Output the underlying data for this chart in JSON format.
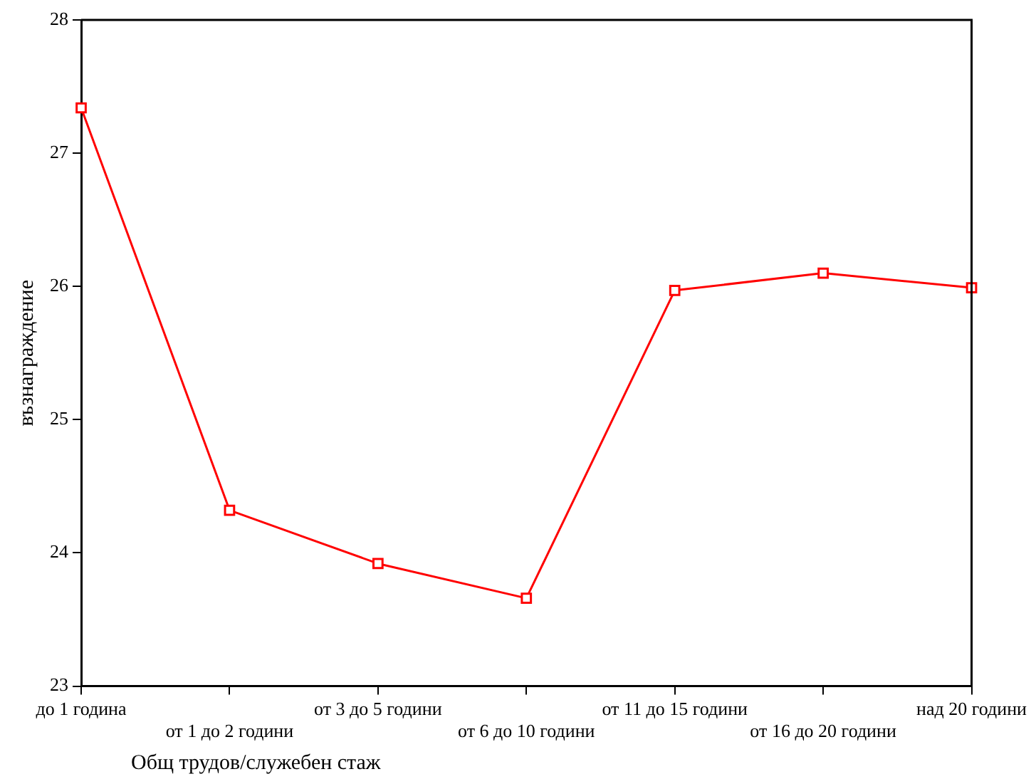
{
  "chart_data": {
    "type": "line",
    "xlabel": "Общ трудов/служебен стаж",
    "ylabel": "възнаграждение",
    "categories": [
      "до 1 година",
      "от 1 до 2 години",
      "от 3 до 5 години",
      "от 6 до 10 години",
      "от 11 до 15 години",
      "от 16 до 20 години",
      "над 20 години"
    ],
    "series": [
      {
        "color": "#ff0000",
        "values": [
          27.34,
          24.32,
          23.92,
          23.66,
          25.97,
          26.1,
          25.99
        ]
      }
    ],
    "ylim": [
      23,
      28
    ],
    "yticks": [
      23,
      24,
      25,
      26,
      27,
      28
    ],
    "grid": false,
    "legend": false,
    "marker": "square",
    "line_style": "solid"
  }
}
